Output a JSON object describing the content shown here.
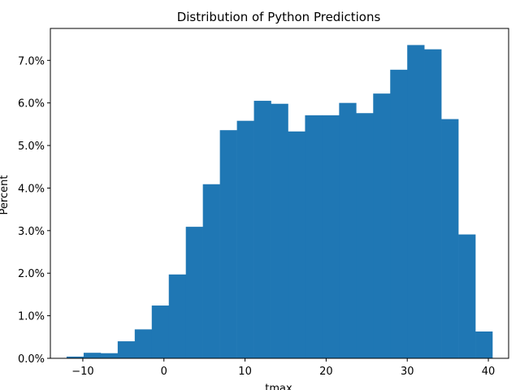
{
  "chart_data": {
    "type": "bar",
    "title": "Distribution of Python Predictions",
    "xlabel": "tmax",
    "ylabel": "Percent",
    "xlim": [
      -14,
      42.5
    ],
    "ylim": [
      0,
      7.75
    ],
    "x_ticks": [
      -10,
      0,
      10,
      20,
      30,
      40
    ],
    "x_tick_labels": [
      "−10",
      "0",
      "10",
      "20",
      "30",
      "40"
    ],
    "y_ticks": [
      0,
      1,
      2,
      3,
      4,
      5,
      6,
      7
    ],
    "y_tick_labels": [
      "0.0%",
      "1.0%",
      "2.0%",
      "3.0%",
      "4.0%",
      "5.0%",
      "6.0%",
      "7.0%"
    ],
    "bin_edges": [
      -12.0,
      -9.9,
      -7.8,
      -5.7,
      -3.6,
      -1.5,
      0.6,
      2.7,
      4.8,
      6.9,
      9.0,
      11.1,
      13.2,
      15.3,
      17.4,
      19.5,
      21.6,
      23.7,
      25.8,
      27.9,
      30.0,
      32.1,
      34.2,
      36.3,
      38.4,
      40.5
    ],
    "values": [
      0.04,
      0.13,
      0.12,
      0.4,
      0.68,
      1.24,
      1.97,
      3.09,
      4.09,
      5.36,
      5.58,
      6.05,
      5.98,
      5.33,
      5.71,
      5.71,
      6.0,
      5.76,
      6.22,
      6.78,
      7.36,
      7.26,
      5.62,
      2.91,
      0.63
    ],
    "bar_color": "#1f77b4",
    "grid": false
  }
}
